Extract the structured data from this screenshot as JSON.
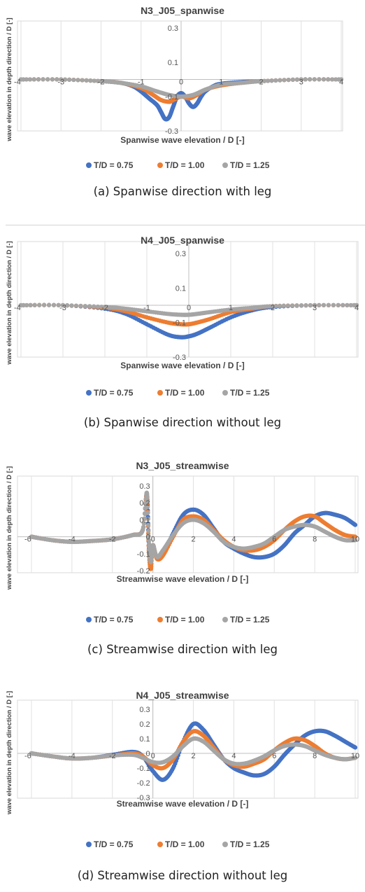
{
  "chart_data": [
    {
      "type": "scatter",
      "title": "N3_J05_spanwise",
      "xlabel": "Spanwise wave elevation / D [-]",
      "ylabel": "wave elevation in depth direction / D [-]",
      "xlim": [
        -4,
        4
      ],
      "ylim": [
        -0.3,
        0.3
      ],
      "xticks": [
        "-4",
        "-3",
        "-2",
        "-1",
        "0",
        "1",
        "2",
        "3",
        "4"
      ],
      "yticks": [
        "0.3",
        "0.1",
        "-0.1",
        "-0.3"
      ],
      "legend_position": "bottom",
      "series": [
        {
          "name": "T/D = 0.75",
          "color": "#4472C4",
          "x": [
            -4,
            -3,
            -2,
            -1.5,
            -1.2,
            -1.0,
            -0.8,
            -0.6,
            -0.5,
            -0.4,
            -0.3,
            -0.2,
            -0.1,
            0,
            0.1,
            0.2,
            0.3,
            0.4,
            0.5,
            0.6,
            0.8,
            1.0,
            1.5,
            2,
            3,
            4
          ],
          "y": [
            0,
            0,
            -0.01,
            -0.02,
            -0.04,
            -0.07,
            -0.11,
            -0.15,
            -0.19,
            -0.23,
            -0.22,
            -0.16,
            -0.1,
            -0.08,
            -0.1,
            -0.14,
            -0.16,
            -0.14,
            -0.1,
            -0.07,
            -0.04,
            -0.025,
            -0.015,
            -0.01,
            0,
            0
          ]
        },
        {
          "name": "T/D = 1.00",
          "color": "#ED7D31",
          "x": [
            -4,
            -3,
            -2,
            -1.5,
            -1.0,
            -0.7,
            -0.5,
            -0.3,
            -0.2,
            0,
            0.2,
            0.4,
            0.6,
            1.0,
            1.5,
            2,
            3,
            4
          ],
          "y": [
            0,
            0,
            -0.01,
            -0.02,
            -0.05,
            -0.09,
            -0.12,
            -0.13,
            -0.12,
            -0.1,
            -0.11,
            -0.09,
            -0.06,
            -0.035,
            -0.02,
            -0.01,
            0,
            0
          ]
        },
        {
          "name": "T/D = 1.25",
          "color": "#A5A5A5",
          "x": [
            -4,
            -3,
            -2,
            -1.5,
            -1.0,
            -0.6,
            -0.3,
            0,
            0.3,
            0.6,
            1.0,
            1.5,
            2,
            3,
            4
          ],
          "y": [
            0,
            0,
            -0.01,
            -0.02,
            -0.04,
            -0.07,
            -0.09,
            -0.1,
            -0.09,
            -0.06,
            -0.03,
            -0.02,
            -0.01,
            0,
            0
          ]
        }
      ]
    },
    {
      "type": "scatter",
      "title": "N4_J05_spanwise",
      "xlabel": "Spanwise wave elevation / D [-]",
      "ylabel": "wave elevation in depth direction / D [-]",
      "xlim": [
        -4,
        4
      ],
      "ylim": [
        -0.3,
        0.3
      ],
      "xticks": [
        "-4",
        "-3",
        "-2",
        "-1",
        "0",
        "1",
        "2",
        "3",
        "4"
      ],
      "yticks": [
        "0.3",
        "0.1",
        "-0.1",
        "-0.3"
      ],
      "legend_position": "bottom",
      "series": [
        {
          "name": "T/D = 0.75",
          "color": "#4472C4",
          "x": [
            -4,
            -3,
            -2,
            -1.5,
            -1.0,
            -0.5,
            -0.2,
            0,
            0.2,
            0.5,
            1.0,
            1.5,
            2,
            3,
            4
          ],
          "y": [
            0,
            0,
            -0.02,
            -0.05,
            -0.11,
            -0.17,
            -0.185,
            -0.18,
            -0.165,
            -0.13,
            -0.07,
            -0.03,
            -0.01,
            0,
            0
          ]
        },
        {
          "name": "T/D = 1.00",
          "color": "#ED7D31",
          "x": [
            -4,
            -3,
            -2,
            -1.5,
            -1.0,
            -0.5,
            -0.2,
            0,
            0.2,
            0.5,
            1.0,
            1.5,
            2,
            3,
            4
          ],
          "y": [
            0,
            0,
            -0.015,
            -0.035,
            -0.07,
            -0.1,
            -0.11,
            -0.11,
            -0.1,
            -0.08,
            -0.04,
            -0.02,
            -0.005,
            0,
            0
          ]
        },
        {
          "name": "T/D = 1.25",
          "color": "#A5A5A5",
          "x": [
            -4,
            -3,
            -2,
            -1.5,
            -1.0,
            -0.5,
            -0.2,
            0,
            0.2,
            0.5,
            1.0,
            1.5,
            2,
            3,
            4
          ],
          "y": [
            0,
            0,
            -0.01,
            -0.02,
            -0.035,
            -0.05,
            -0.055,
            -0.055,
            -0.05,
            -0.04,
            -0.025,
            -0.015,
            -0.005,
            0,
            0
          ]
        }
      ]
    },
    {
      "type": "scatter",
      "title": "N3_J05_streamwise",
      "xlabel": "Streamwise wave elevation / D [-]",
      "ylabel": "wave elevation in depth direction / D [-]",
      "xlim": [
        -6,
        10
      ],
      "ylim": [
        -0.2,
        0.3
      ],
      "xticks": [
        "-6",
        "-4",
        "-2",
        "0",
        "2",
        "4",
        "6",
        "8",
        "10"
      ],
      "yticks": [
        "0.3",
        "0.2",
        "0.1",
        "0",
        "-0.1",
        "-0.2"
      ],
      "legend_position": "bottom",
      "series": [
        {
          "name": "T/D = 0.75",
          "color": "#4472C4",
          "x": [
            -6,
            -5,
            -4,
            -3,
            -2,
            -1,
            -0.5,
            -0.3,
            -0.2,
            -0.1,
            0,
            0.2,
            0.5,
            1,
            1.5,
            2,
            2.5,
            3,
            3.5,
            4,
            4.5,
            5,
            5.5,
            6,
            6.5,
            7,
            7.5,
            8,
            8.5,
            9,
            9.5,
            10
          ],
          "y": [
            0,
            -0.02,
            -0.03,
            -0.025,
            -0.015,
            0.01,
            0.04,
            0.25,
            -0.05,
            -0.12,
            -0.06,
            -0.12,
            -0.1,
            0.02,
            0.13,
            0.16,
            0.13,
            0.05,
            -0.03,
            -0.07,
            -0.1,
            -0.12,
            -0.12,
            -0.1,
            -0.05,
            0.02,
            0.07,
            0.12,
            0.14,
            0.13,
            0.11,
            0.07
          ]
        },
        {
          "name": "T/D = 1.00",
          "color": "#ED7D31",
          "x": [
            -6,
            -5,
            -4,
            -3,
            -2,
            -1,
            -0.5,
            -0.3,
            -0.2,
            -0.1,
            0,
            0.2,
            0.5,
            1,
            1.5,
            2,
            2.5,
            3,
            3.5,
            4,
            4.5,
            5,
            5.5,
            6,
            6.5,
            7,
            7.5,
            8,
            8.5,
            9,
            9.5,
            10
          ],
          "y": [
            0,
            -0.02,
            -0.03,
            -0.025,
            -0.015,
            0.01,
            0.04,
            0.25,
            -0.08,
            -0.19,
            -0.05,
            -0.13,
            -0.11,
            0.0,
            0.1,
            0.12,
            0.1,
            0.04,
            -0.02,
            -0.06,
            -0.08,
            -0.08,
            -0.06,
            -0.02,
            0.04,
            0.09,
            0.12,
            0.12,
            0.08,
            0.04,
            0.01,
            0.0
          ]
        },
        {
          "name": "T/D = 1.25",
          "color": "#A5A5A5",
          "x": [
            -6,
            -5,
            -4,
            -3,
            -2,
            -1,
            -0.5,
            -0.3,
            -0.2,
            -0.1,
            0,
            0.2,
            0.5,
            1,
            1.5,
            2,
            2.5,
            3,
            3.5,
            4,
            4.5,
            5,
            5.5,
            6,
            6.5,
            7,
            7.5,
            8,
            8.5,
            9,
            9.5,
            10
          ],
          "y": [
            0,
            -0.02,
            -0.03,
            -0.025,
            -0.015,
            0.01,
            0.04,
            0.26,
            -0.02,
            -0.15,
            -0.05,
            -0.12,
            -0.08,
            0.01,
            0.08,
            0.1,
            0.08,
            0.03,
            -0.03,
            -0.06,
            -0.07,
            -0.06,
            -0.04,
            0.0,
            0.04,
            0.06,
            0.07,
            0.06,
            0.03,
            0.0,
            -0.02,
            -0.02
          ]
        }
      ]
    },
    {
      "type": "scatter",
      "title": "N4_J05_streamwise",
      "xlabel": "Streamwise wave elevation / D [-]",
      "ylabel": "wave elevation in depth direction / D [-]",
      "xlim": [
        -6,
        10
      ],
      "ylim": [
        -0.3,
        0.3
      ],
      "xticks": [
        "-6",
        "-4",
        "-2",
        "0",
        "2",
        "4",
        "6",
        "8",
        "10"
      ],
      "yticks": [
        "0.3",
        "0.2",
        "0.1",
        "0",
        "-0.1",
        "-0.2",
        "-0.3"
      ],
      "legend_position": "bottom",
      "series": [
        {
          "name": "T/D = 0.75",
          "color": "#4472C4",
          "x": [
            -6,
            -5,
            -4,
            -3,
            -2,
            -1,
            -0.5,
            0,
            0.5,
            1,
            1.5,
            2,
            2.5,
            3,
            3.5,
            4,
            4.5,
            5,
            5.5,
            6,
            6.5,
            7,
            7.5,
            8,
            8.5,
            9,
            9.5,
            10
          ],
          "y": [
            0,
            -0.02,
            -0.035,
            -0.03,
            -0.01,
            0.01,
            -0.02,
            -0.12,
            -0.18,
            -0.1,
            0.08,
            0.2,
            0.16,
            0.06,
            -0.04,
            -0.1,
            -0.13,
            -0.15,
            -0.14,
            -0.09,
            -0.01,
            0.06,
            0.12,
            0.15,
            0.15,
            0.12,
            0.08,
            0.04
          ]
        },
        {
          "name": "T/D = 1.00",
          "color": "#ED7D31",
          "x": [
            -6,
            -5,
            -4,
            -3,
            -2,
            -1,
            -0.5,
            0,
            0.5,
            1,
            1.5,
            2,
            2.5,
            3,
            3.5,
            4,
            4.5,
            5,
            5.5,
            6,
            6.5,
            7,
            7.5,
            8,
            8.5,
            9,
            9.5,
            10
          ],
          "y": [
            0,
            -0.02,
            -0.035,
            -0.03,
            -0.015,
            0.0,
            -0.02,
            -0.08,
            -0.1,
            -0.04,
            0.08,
            0.15,
            0.12,
            0.04,
            -0.04,
            -0.08,
            -0.09,
            -0.07,
            -0.04,
            0.02,
            0.07,
            0.1,
            0.09,
            0.05,
            0.0,
            -0.03,
            -0.04,
            -0.03
          ]
        },
        {
          "name": "T/D = 1.25",
          "color": "#A5A5A5",
          "x": [
            -6,
            -5,
            -4,
            -3,
            -2,
            -1,
            -0.5,
            0,
            0.5,
            1,
            1.5,
            2,
            2.5,
            3,
            3.5,
            4,
            4.5,
            5,
            5.5,
            6,
            6.5,
            7,
            7.5,
            8,
            8.5,
            9,
            9.5,
            10
          ],
          "y": [
            0,
            -0.02,
            -0.035,
            -0.03,
            -0.015,
            -0.01,
            -0.03,
            -0.06,
            -0.06,
            -0.02,
            0.05,
            0.1,
            0.08,
            0.02,
            -0.04,
            -0.07,
            -0.07,
            -0.05,
            -0.02,
            0.02,
            0.05,
            0.06,
            0.05,
            0.02,
            -0.01,
            -0.03,
            -0.04,
            -0.03
          ]
        }
      ]
    }
  ],
  "captions": [
    "(a)  Spanwise direction with leg",
    "(b)  Spanwise direction without leg",
    "(c)  Streamwise direction with leg",
    "(d)  Streamwise direction without leg"
  ]
}
